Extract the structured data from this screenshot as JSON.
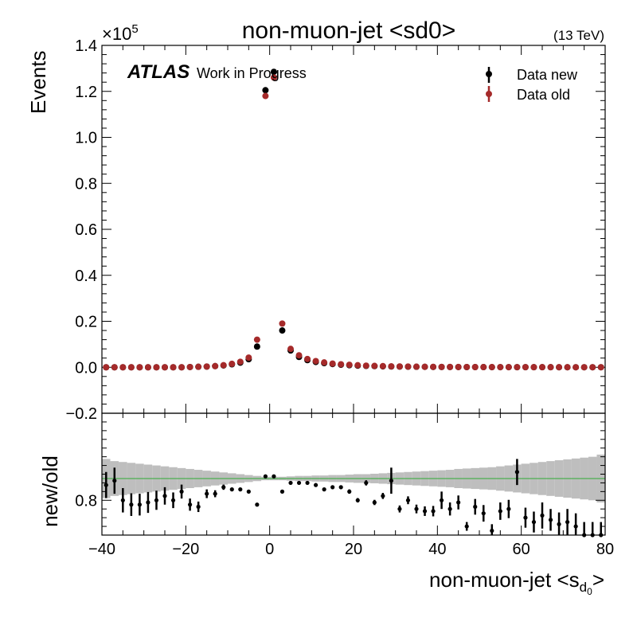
{
  "chart_data": [
    {
      "type": "scatter",
      "title": "non-muon-jet <sd0>",
      "energy_label": "(13 TeV)",
      "experiment_label": "ATLAS",
      "status_label": "Work in Progress",
      "ylabel": "Events",
      "y_multiplier": "×10",
      "y_multiplier_exp": "5",
      "xlim": [
        -40,
        80
      ],
      "ylim": [
        -0.2,
        1.4
      ],
      "y_scale_factor": 100000,
      "x_ticks": [
        "−40",
        "−20",
        "0",
        "20",
        "40",
        "60",
        "80"
      ],
      "y_ticks": [
        "−0.2",
        "0.0",
        "0.2",
        "0.4",
        "0.6",
        "0.8",
        "1.0",
        "1.2",
        "1.4"
      ],
      "legend_position": "top-right",
      "series": [
        {
          "name": "Data new",
          "color": "#000000",
          "x": [
            -39,
            -37,
            -35,
            -33,
            -31,
            -29,
            -27,
            -25,
            -23,
            -21,
            -19,
            -17,
            -15,
            -13,
            -11,
            -9,
            -7,
            -5,
            -3,
            -1,
            1,
            3,
            5,
            7,
            9,
            11,
            13,
            15,
            17,
            19,
            21,
            23,
            25,
            27,
            29,
            31,
            33,
            35,
            37,
            39,
            41,
            43,
            45,
            47,
            49,
            51,
            53,
            55,
            57,
            59,
            61,
            63,
            65,
            67,
            69,
            71,
            73,
            75,
            77,
            79
          ],
          "y": [
            0.0,
            0.0,
            0.0,
            0.0,
            0.0,
            0.0,
            0.0,
            0.0,
            0.0,
            0.0,
            0.001,
            0.002,
            0.003,
            0.005,
            0.008,
            0.013,
            0.02,
            0.035,
            0.09,
            1.205,
            1.285,
            0.16,
            0.073,
            0.045,
            0.031,
            0.023,
            0.018,
            0.014,
            0.011,
            0.009,
            0.007,
            0.006,
            0.005,
            0.004,
            0.0035,
            0.003,
            0.0025,
            0.002,
            0.0018,
            0.0015,
            0.0013,
            0.0011,
            0.001,
            0.0009,
            0.0008,
            0.0007,
            0.0006,
            0.0005,
            0.0005,
            0.0004,
            0.0004,
            0.0003,
            0.0003,
            0.0003,
            0.0002,
            0.0002,
            0.0002,
            0.0002,
            0.0001,
            0.0001
          ]
        },
        {
          "name": "Data old",
          "color": "#a52a2a",
          "x": [
            -39,
            -37,
            -35,
            -33,
            -31,
            -29,
            -27,
            -25,
            -23,
            -21,
            -19,
            -17,
            -15,
            -13,
            -11,
            -9,
            -7,
            -5,
            -3,
            -1,
            1,
            3,
            5,
            7,
            9,
            11,
            13,
            15,
            17,
            19,
            21,
            23,
            25,
            27,
            29,
            31,
            33,
            35,
            37,
            39,
            41,
            43,
            45,
            47,
            49,
            51,
            53,
            55,
            57,
            59,
            61,
            63,
            65,
            67,
            69,
            71,
            73,
            75,
            77,
            79
          ],
          "y": [
            0.0,
            0.0,
            0.0,
            0.0,
            0.0,
            0.0,
            0.0,
            0.0,
            0.0,
            0.0,
            0.001,
            0.002,
            0.003,
            0.005,
            0.009,
            0.015,
            0.024,
            0.042,
            0.12,
            1.18,
            1.26,
            0.19,
            0.08,
            0.052,
            0.036,
            0.027,
            0.021,
            0.016,
            0.013,
            0.011,
            0.009,
            0.007,
            0.006,
            0.005,
            0.004,
            0.0035,
            0.003,
            0.0025,
            0.002,
            0.0018,
            0.0015,
            0.0013,
            0.0012,
            0.001,
            0.0009,
            0.0008,
            0.0007,
            0.0006,
            0.0006,
            0.0005,
            0.0005,
            0.0004,
            0.0004,
            0.0003,
            0.0003,
            0.0003,
            0.0002,
            0.0002,
            0.0002,
            0.0001
          ]
        }
      ]
    },
    {
      "type": "scatter",
      "xlabel": "non-muon-jet <s",
      "xlabel_sub": "d",
      "xlabel_subsub": "0",
      "xlabel_suffix": ">",
      "ylabel": "new/old",
      "xlim": [
        -40,
        80
      ],
      "ylim": [
        0.72,
        1.0
      ],
      "y_ticks": [
        "0.8"
      ],
      "reference_line": 0.85,
      "reference_color": "#4caf50",
      "band_color": "#bebebe",
      "band": {
        "x": [
          -39,
          -37,
          -35,
          -33,
          -31,
          -29,
          -27,
          -25,
          -23,
          -21,
          -19,
          -17,
          -15,
          -13,
          -11,
          -9,
          -7,
          -5,
          -3,
          -1,
          1,
          3,
          5,
          7,
          9,
          11,
          13,
          15,
          17,
          19,
          21,
          23,
          25,
          27,
          29,
          31,
          33,
          35,
          37,
          39,
          41,
          43,
          45,
          47,
          49,
          51,
          53,
          55,
          57,
          59,
          61,
          63,
          65,
          67,
          69,
          71,
          73,
          75,
          77,
          79
        ],
        "half_width": [
          0.045,
          0.04,
          0.038,
          0.036,
          0.034,
          0.032,
          0.03,
          0.028,
          0.026,
          0.024,
          0.022,
          0.02,
          0.018,
          0.016,
          0.014,
          0.012,
          0.01,
          0.008,
          0.006,
          0.004,
          0.004,
          0.004,
          0.005,
          0.006,
          0.006,
          0.007,
          0.007,
          0.008,
          0.008,
          0.009,
          0.01,
          0.01,
          0.011,
          0.012,
          0.013,
          0.014,
          0.015,
          0.016,
          0.017,
          0.018,
          0.019,
          0.02,
          0.022,
          0.023,
          0.024,
          0.025,
          0.026,
          0.028,
          0.03,
          0.032,
          0.034,
          0.036,
          0.038,
          0.04,
          0.042,
          0.044,
          0.046,
          0.048,
          0.05,
          0.055
        ]
      },
      "x": [
        -39,
        -37,
        -35,
        -33,
        -31,
        -29,
        -27,
        -25,
        -23,
        -21,
        -19,
        -17,
        -15,
        -13,
        -11,
        -9,
        -7,
        -5,
        -3,
        -1,
        1,
        3,
        5,
        7,
        9,
        11,
        13,
        15,
        17,
        19,
        21,
        23,
        25,
        27,
        29,
        31,
        33,
        35,
        37,
        39,
        41,
        43,
        45,
        47,
        49,
        51,
        53,
        55,
        57,
        59,
        61,
        63,
        65,
        67,
        69,
        71,
        73,
        75,
        77,
        79
      ],
      "values": [
        0.835,
        0.845,
        0.8,
        0.79,
        0.79,
        0.795,
        0.8,
        0.81,
        0.8,
        0.82,
        0.79,
        0.785,
        0.815,
        0.815,
        0.83,
        0.825,
        0.825,
        0.82,
        0.79,
        0.855,
        0.855,
        0.82,
        0.84,
        0.84,
        0.84,
        0.835,
        0.825,
        0.83,
        0.83,
        0.82,
        0.8,
        0.84,
        0.795,
        0.81,
        0.845,
        0.78,
        0.8,
        0.78,
        0.775,
        0.775,
        0.8,
        0.78,
        0.795,
        0.74,
        0.785,
        0.77,
        0.73,
        0.775,
        0.78,
        0.865,
        0.76,
        0.75,
        0.765,
        0.755,
        0.745,
        0.75,
        0.74,
        0.72,
        0.72,
        0.72
      ],
      "errors": [
        0.03,
        0.03,
        0.028,
        0.026,
        0.025,
        0.024,
        0.022,
        0.02,
        0.018,
        0.016,
        0.014,
        0.012,
        0.01,
        0.008,
        0.006,
        0.004,
        0.003,
        0.002,
        0.001,
        0.001,
        0.001,
        0.001,
        0.001,
        0.002,
        0.002,
        0.003,
        0.003,
        0.004,
        0.004,
        0.005,
        0.005,
        0.006,
        0.006,
        0.007,
        0.03,
        0.008,
        0.009,
        0.01,
        0.011,
        0.012,
        0.02,
        0.015,
        0.016,
        0.01,
        0.018,
        0.019,
        0.015,
        0.02,
        0.021,
        0.03,
        0.023,
        0.024,
        0.03,
        0.025,
        0.027,
        0.03,
        0.03,
        0.03,
        0.03,
        0.03
      ]
    }
  ]
}
